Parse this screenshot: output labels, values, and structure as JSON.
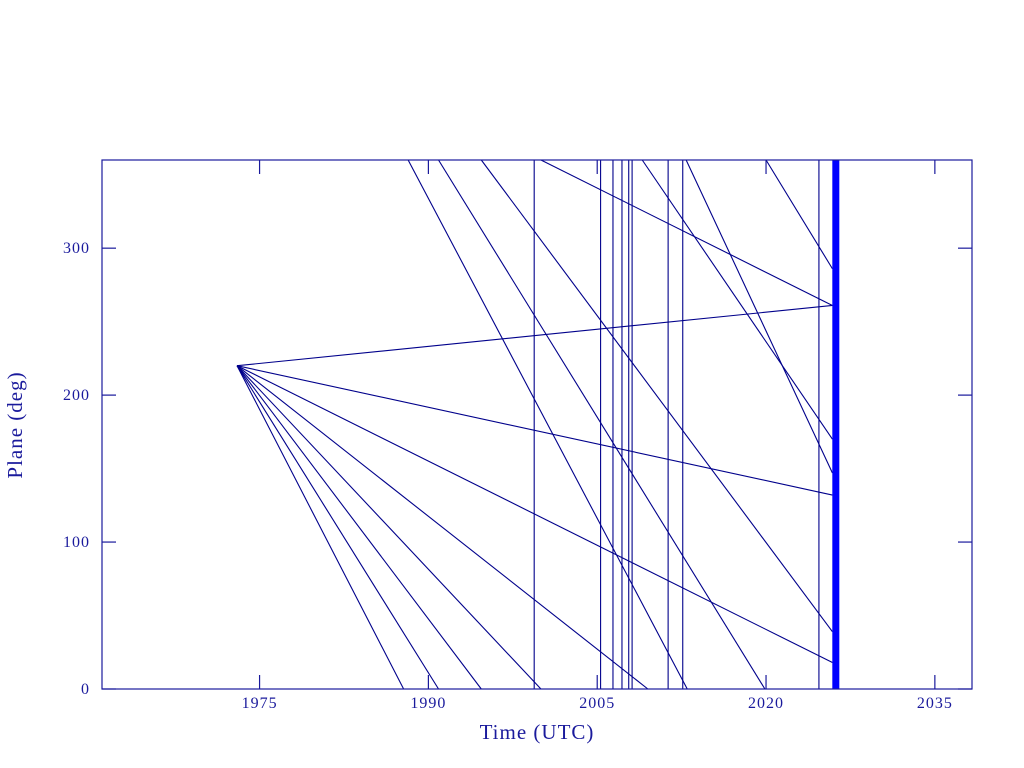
{
  "chart_data": {
    "type": "line",
    "x_label": "Time (UTC)",
    "y_label": "Plane (deg)",
    "xlim": [
      1961,
      2038.3
    ],
    "ylim": [
      0,
      360
    ],
    "xticks": [
      1975,
      1990,
      2005,
      2020,
      2035
    ],
    "yticks": [
      0,
      100,
      200,
      300
    ],
    "series": [
      {
        "color": "#00008b",
        "x": [
          1973.0,
          1987.8
        ],
        "values": [
          220,
          0
        ]
      },
      {
        "color": "#00008b",
        "x": [
          1973.0,
          1990.9
        ],
        "values": [
          220,
          0
        ]
      },
      {
        "color": "#00008b",
        "x": [
          1973.0,
          1994.7
        ],
        "values": [
          220,
          0
        ]
      },
      {
        "color": "#00008b",
        "x": [
          1973.0,
          2000.0
        ],
        "values": [
          220,
          0
        ]
      },
      {
        "color": "#00008b",
        "x": [
          1973.0,
          2009.5
        ],
        "values": [
          220,
          0
        ]
      },
      {
        "color": "#00008b",
        "x": [
          1973.0,
          2025.9
        ],
        "values": [
          220,
          18
        ]
      },
      {
        "color": "#00008b",
        "x": [
          1973.0,
          2025.9
        ],
        "values": [
          220,
          132
        ]
      },
      {
        "color": "#00008b",
        "x": [
          1973.0,
          2025.9
        ],
        "values": [
          220,
          261
        ]
      },
      {
        "color": "#00008b",
        "x": [
          1988.2,
          2013.0
        ],
        "values": [
          360,
          0
        ]
      },
      {
        "color": "#00008b",
        "x": [
          1990.9,
          2019.9
        ],
        "values": [
          360,
          0
        ]
      },
      {
        "color": "#00008b",
        "x": [
          1994.7,
          2025.9
        ],
        "values": [
          360,
          39
        ]
      },
      {
        "color": "#00008b",
        "x": [
          2000.0,
          2025.9
        ],
        "values": [
          360,
          261
        ]
      },
      {
        "color": "#00008b",
        "x": [
          2009.0,
          2025.9
        ],
        "values": [
          360,
          170
        ]
      },
      {
        "color": "#00008b",
        "x": [
          2012.9,
          2025.9
        ],
        "values": [
          360,
          147
        ]
      },
      {
        "color": "#00008b",
        "x": [
          2020.0,
          2025.9
        ],
        "values": [
          360,
          286
        ]
      },
      {
        "color": "#00008b",
        "x": [
          1999.4,
          1999.4
        ],
        "values": [
          0,
          360
        ]
      },
      {
        "color": "#00008b",
        "x": [
          2005.3,
          2005.3
        ],
        "values": [
          0,
          360
        ]
      },
      {
        "color": "#00008b",
        "x": [
          2006.4,
          2006.4
        ],
        "values": [
          0,
          360
        ]
      },
      {
        "color": "#00008b",
        "x": [
          2007.2,
          2007.2
        ],
        "values": [
          0,
          360
        ]
      },
      {
        "color": "#00008b",
        "x": [
          2007.8,
          2007.8
        ],
        "values": [
          0,
          360
        ]
      },
      {
        "color": "#00008b",
        "x": [
          2008.1,
          2008.1
        ],
        "values": [
          0,
          360
        ]
      },
      {
        "color": "#00008b",
        "x": [
          2011.3,
          2011.3
        ],
        "values": [
          0,
          360
        ]
      },
      {
        "color": "#00008b",
        "x": [
          2012.6,
          2012.6
        ],
        "values": [
          0,
          360
        ]
      },
      {
        "color": "#00008b",
        "x": [
          2024.7,
          2024.7
        ],
        "values": [
          0,
          360
        ]
      },
      {
        "color": "#0000ff",
        "linewidth": 7,
        "x": [
          2026.2,
          2026.2
        ],
        "values": [
          0,
          360
        ]
      }
    ]
  }
}
